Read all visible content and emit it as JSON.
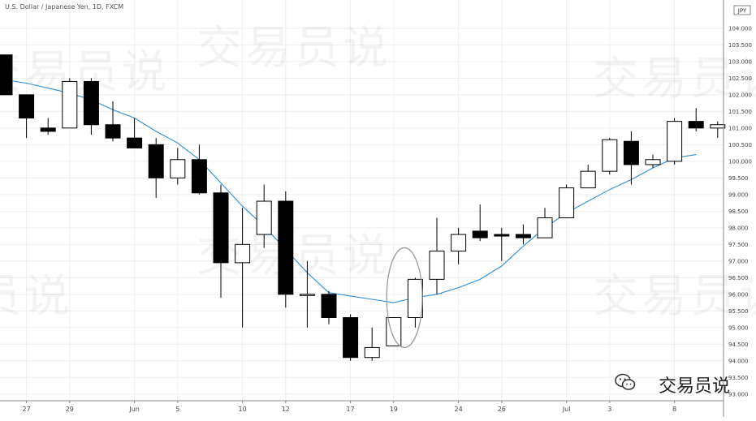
{
  "chart_data": {
    "type": "candlestick",
    "title": "U.S. Dollar / Japanese Yen, 1D, FXCM",
    "currency_badge": "JPY",
    "watermark": "交易员说",
    "brand": "交易员说",
    "x_tick_labels": [
      {
        "index": 1,
        "label": "27"
      },
      {
        "index": 3,
        "label": "29"
      },
      {
        "index": 6,
        "label": "Jun"
      },
      {
        "index": 8,
        "label": "5"
      },
      {
        "index": 11,
        "label": "10"
      },
      {
        "index": 13,
        "label": "12"
      },
      {
        "index": 16,
        "label": "17"
      },
      {
        "index": 18,
        "label": "19"
      },
      {
        "index": 21,
        "label": "24"
      },
      {
        "index": 23,
        "label": "26"
      },
      {
        "index": 26,
        "label": "Jul"
      },
      {
        "index": 28,
        "label": "3"
      },
      {
        "index": 31,
        "label": "8"
      }
    ],
    "y_ticks": [
      93.0,
      93.5,
      94.0,
      94.5,
      95.0,
      95.5,
      96.0,
      96.5,
      97.0,
      97.5,
      98.0,
      98.5,
      99.0,
      99.5,
      100.0,
      100.5,
      101.0,
      101.5,
      102.0,
      102.5,
      103.0,
      103.5,
      104.0
    ],
    "ylim": [
      92.8,
      104.85
    ],
    "ohlc": [
      {
        "o": 103.2,
        "h": 103.2,
        "l": 102.0,
        "c": 102.0
      },
      {
        "o": 102.0,
        "h": 102.0,
        "l": 100.7,
        "c": 101.3
      },
      {
        "o": 101.0,
        "h": 101.3,
        "l": 100.8,
        "c": 100.9
      },
      {
        "o": 101.0,
        "h": 102.5,
        "l": 101.0,
        "c": 102.4
      },
      {
        "o": 102.4,
        "h": 102.5,
        "l": 100.8,
        "c": 101.1
      },
      {
        "o": 101.1,
        "h": 101.8,
        "l": 100.6,
        "c": 100.7
      },
      {
        "o": 100.7,
        "h": 101.3,
        "l": 100.4,
        "c": 100.4
      },
      {
        "o": 100.5,
        "h": 100.7,
        "l": 98.9,
        "c": 99.5
      },
      {
        "o": 99.5,
        "h": 100.4,
        "l": 99.3,
        "c": 100.05
      },
      {
        "o": 100.05,
        "h": 100.5,
        "l": 99.0,
        "c": 99.05
      },
      {
        "o": 99.05,
        "h": 99.3,
        "l": 95.9,
        "c": 96.95
      },
      {
        "o": 96.95,
        "h": 98.6,
        "l": 95.0,
        "c": 97.5
      },
      {
        "o": 97.8,
        "h": 99.3,
        "l": 97.4,
        "c": 98.8
      },
      {
        "o": 98.8,
        "h": 99.1,
        "l": 95.6,
        "c": 96.0
      },
      {
        "o": 96.0,
        "h": 97.0,
        "l": 95.0,
        "c": 96.0
      },
      {
        "o": 96.0,
        "h": 96.1,
        "l": 95.1,
        "c": 95.3
      },
      {
        "o": 95.3,
        "h": 95.4,
        "l": 94.0,
        "c": 94.1
      },
      {
        "o": 94.1,
        "h": 95.0,
        "l": 94.0,
        "c": 94.4
      },
      {
        "o": 94.45,
        "h": 95.3,
        "l": 94.45,
        "c": 95.3
      },
      {
        "o": 95.3,
        "h": 96.5,
        "l": 95.0,
        "c": 96.45
      },
      {
        "o": 96.45,
        "h": 98.3,
        "l": 96.0,
        "c": 97.3
      },
      {
        "o": 97.3,
        "h": 98.0,
        "l": 96.9,
        "c": 97.8
      },
      {
        "o": 97.9,
        "h": 98.7,
        "l": 97.6,
        "c": 97.7
      },
      {
        "o": 97.8,
        "h": 98.0,
        "l": 97.0,
        "c": 97.75
      },
      {
        "o": 97.8,
        "h": 98.1,
        "l": 97.5,
        "c": 97.7
      },
      {
        "o": 97.7,
        "h": 98.6,
        "l": 97.7,
        "c": 98.3
      },
      {
        "o": 98.3,
        "h": 99.3,
        "l": 98.3,
        "c": 99.2
      },
      {
        "o": 99.2,
        "h": 99.9,
        "l": 99.2,
        "c": 99.7
      },
      {
        "o": 99.7,
        "h": 100.7,
        "l": 99.6,
        "c": 100.65
      },
      {
        "o": 100.6,
        "h": 100.9,
        "l": 99.3,
        "c": 99.9
      },
      {
        "o": 99.9,
        "h": 100.2,
        "l": 99.8,
        "c": 100.05
      },
      {
        "o": 100.0,
        "h": 101.3,
        "l": 99.9,
        "c": 101.2
      },
      {
        "o": 101.2,
        "h": 101.6,
        "l": 100.9,
        "c": 101.0
      },
      {
        "o": 101.0,
        "h": 101.2,
        "l": 100.7,
        "c": 101.1
      }
    ],
    "moving_average": {
      "color": "#2b8ed8",
      "points": [
        [
          0,
          102.45
        ],
        [
          1,
          102.35
        ],
        [
          2,
          102.2
        ],
        [
          3,
          102.05
        ],
        [
          4,
          101.85
        ],
        [
          5,
          101.55
        ],
        [
          6,
          101.3
        ],
        [
          7,
          100.9
        ],
        [
          8,
          100.55
        ],
        [
          9,
          100.05
        ],
        [
          10,
          99.35
        ],
        [
          11,
          98.65
        ],
        [
          12,
          98.05
        ],
        [
          13,
          97.35
        ],
        [
          14,
          96.65
        ],
        [
          15,
          96.05
        ],
        [
          16,
          95.95
        ],
        [
          17,
          95.85
        ],
        [
          18,
          95.75
        ],
        [
          19,
          95.9
        ],
        [
          20,
          96.0
        ],
        [
          21,
          96.2
        ],
        [
          22,
          96.45
        ],
        [
          23,
          96.85
        ],
        [
          24,
          97.45
        ],
        [
          25,
          98.0
        ],
        [
          26,
          98.45
        ],
        [
          27,
          98.8
        ],
        [
          28,
          99.15
        ],
        [
          29,
          99.45
        ],
        [
          30,
          99.8
        ],
        [
          31,
          100.1
        ],
        [
          32,
          100.2
        ]
      ]
    },
    "highlight_ellipse": {
      "center_index": 18.5,
      "center_value": 95.9,
      "width_candles": 1.65,
      "height_value": 3.0
    },
    "grid": true,
    "colors": {
      "bull_fill": "#ffffff",
      "bear_fill": "#000000",
      "outline": "#000000",
      "grid": "#eeeeee",
      "axis_text": "#444444",
      "ellipse": "#999999"
    }
  }
}
